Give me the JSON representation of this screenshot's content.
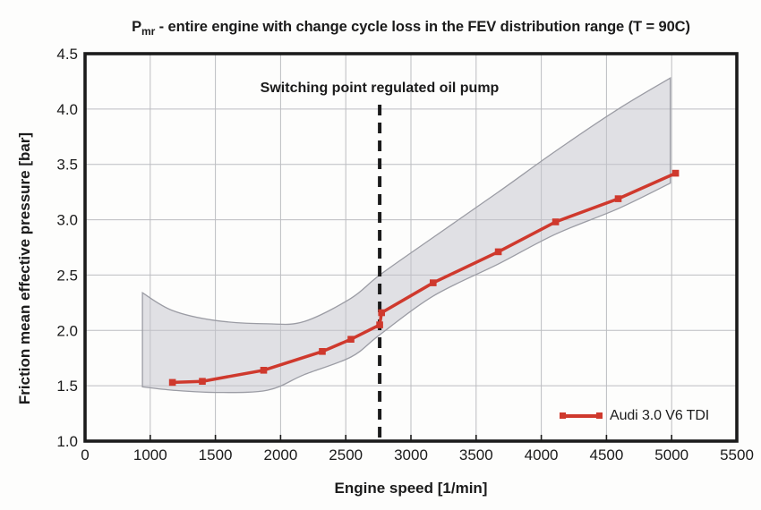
{
  "figure": {
    "title": {
      "prefix": "P",
      "sub": "mr",
      "rest": " - entire engine with change cycle loss in the FEV distribution range (T = 90C)"
    }
  },
  "chart_data": {
    "type": "line",
    "title": "Pmr - entire engine with change cycle loss in the FEV distribution range (T = 90C)",
    "xlabel": "Engine speed [1/min]",
    "ylabel": "Friction mean effective pressure [bar]",
    "x_tick_labels": [
      "0",
      "1000",
      "1500",
      "2000",
      "2500",
      "3000",
      "3500",
      "4000",
      "4500",
      "5000",
      "5500"
    ],
    "x_axis_type": "segmented: first division spans 0-1000, every following division spans 500",
    "y_ticks": [
      1.0,
      1.5,
      2.0,
      2.5,
      3.0,
      3.5,
      4.0,
      4.5
    ],
    "ylim": [
      1.0,
      4.5
    ],
    "grid": true,
    "annotation": {
      "text": "Switching point regulated oil pump",
      "x_rpm": 2760,
      "line_style": "dashed-vertical"
    },
    "series": [
      {
        "name": "Audi 3.0 V6 TDI",
        "marker": "square",
        "points": [
          [
            1170,
            1.53
          ],
          [
            1400,
            1.54
          ],
          [
            1870,
            1.64
          ],
          [
            2320,
            1.81
          ],
          [
            2540,
            1.92
          ],
          [
            2760,
            2.05
          ],
          [
            2775,
            2.16
          ],
          [
            3170,
            2.43
          ],
          [
            3670,
            2.71
          ],
          [
            4110,
            2.98
          ],
          [
            4590,
            3.19
          ],
          [
            5030,
            3.42
          ]
        ]
      }
    ],
    "band": {
      "name": "FEV distribution range",
      "x_rpm": [
        880,
        1170,
        1500,
        1900,
        2180,
        2540,
        2760,
        3170,
        3670,
        4110,
        4590,
        4990
      ],
      "bottom": [
        1.49,
        1.46,
        1.44,
        1.46,
        1.6,
        1.76,
        1.96,
        2.31,
        2.6,
        2.87,
        3.1,
        3.33
      ],
      "top": [
        2.34,
        2.18,
        2.09,
        2.06,
        2.08,
        2.29,
        2.5,
        2.84,
        3.25,
        3.62,
        4.0,
        4.28
      ]
    },
    "legend": {
      "position": "lower right",
      "entries": [
        "Audi 3.0 V6 TDI"
      ]
    }
  },
  "colors": {
    "series_red": "#cf392d",
    "band_fill": "#c3c4cc",
    "band_edge": "#9b9ca4",
    "grid": "#bcbdc1",
    "axis": "#1b1b1b",
    "text": "#1b1b1b"
  }
}
